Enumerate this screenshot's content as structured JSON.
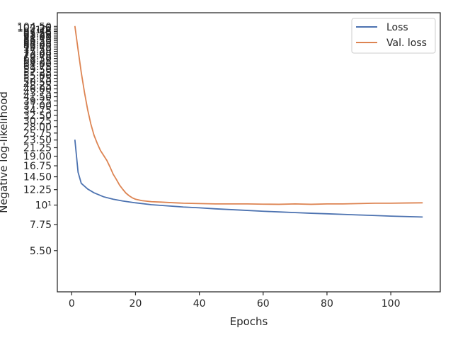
{
  "chart_data": {
    "type": "line",
    "title": "",
    "xlabel": "Epochs",
    "ylabel": "Negative log-likelihood",
    "yscale": "log",
    "xlim": [
      -4.5,
      115.5
    ],
    "ylim": [
      3.2,
      125
    ],
    "grid": false,
    "legend_position": "top-right",
    "x_ticks": [
      0,
      20,
      40,
      60,
      80,
      100
    ],
    "x_tick_labels": [
      "0",
      "20",
      "40",
      "60",
      "80",
      "100"
    ],
    "y_ticks": [
      5.5,
      7.75,
      10,
      12.25,
      14.5,
      16.75,
      19,
      21.25,
      23.5,
      25.75,
      28,
      30.25,
      32.5,
      34.75,
      37,
      39.25,
      41.5,
      43.75,
      46,
      48.25,
      50.5,
      52.75,
      55,
      57.25,
      59.5,
      61.75,
      64,
      66.25,
      68.5,
      70.75,
      73,
      75.25,
      77.5,
      79.75,
      82,
      84.25,
      86.5,
      88.75,
      91,
      93.25,
      95.5,
      97.75,
      100,
      102.25,
      104.5
    ],
    "y_tick_labels": [
      "5.50",
      "7.75",
      "10¹",
      "12.25",
      "14.50",
      "16.75",
      "19.00",
      "21.25",
      "23.50",
      "25.75",
      "28.00",
      "30.25",
      "32.50",
      "34.75",
      "37.00",
      "39.25",
      "41.50",
      "43.75",
      "46.00",
      "48.25",
      "50.50",
      "52.75",
      "55.00",
      "57.25",
      "59.50",
      "61.75",
      "64.00",
      "66.25",
      "68.50",
      "70.75",
      "73.00",
      "75.25",
      "77.50",
      "79.75",
      "82.00",
      "84.25",
      "86.50",
      "88.75",
      "91.00",
      "93.25",
      "95.50",
      "97.75",
      "10²",
      "102.25",
      "104.50"
    ],
    "series": [
      {
        "name": "Loss",
        "color": "#4c72b0",
        "x": [
          1,
          2,
          3,
          5,
          7,
          10,
          13,
          16,
          20,
          25,
          30,
          35,
          40,
          45,
          50,
          55,
          60,
          65,
          70,
          75,
          80,
          85,
          90,
          95,
          100,
          105,
          110
        ],
        "y": [
          23.6,
          15.4,
          13.3,
          12.35,
          11.75,
          11.15,
          10.8,
          10.55,
          10.3,
          10.05,
          9.9,
          9.75,
          9.65,
          9.52,
          9.42,
          9.32,
          9.22,
          9.14,
          9.06,
          8.98,
          8.92,
          8.85,
          8.78,
          8.72,
          8.65,
          8.6,
          8.55
        ]
      },
      {
        "name": "Val. loss",
        "color": "#dd8452",
        "x": [
          1,
          2,
          3,
          4,
          5,
          6,
          7,
          8,
          9,
          10,
          11,
          12,
          13,
          14,
          15,
          16,
          17,
          18,
          19,
          20,
          22,
          25,
          28,
          30,
          35,
          40,
          45,
          50,
          55,
          60,
          65,
          70,
          75,
          80,
          85,
          90,
          95,
          100,
          105,
          110
        ],
        "y": [
          105,
          77,
          57,
          44,
          35,
          29,
          25,
          22.5,
          20.5,
          19.2,
          18,
          16.5,
          15,
          14,
          13,
          12.3,
          11.7,
          11.3,
          11,
          10.8,
          10.6,
          10.45,
          10.4,
          10.35,
          10.25,
          10.2,
          10.15,
          10.15,
          10.15,
          10.12,
          10.1,
          10.15,
          10.1,
          10.15,
          10.15,
          10.2,
          10.25,
          10.25,
          10.28,
          10.3
        ]
      }
    ]
  }
}
